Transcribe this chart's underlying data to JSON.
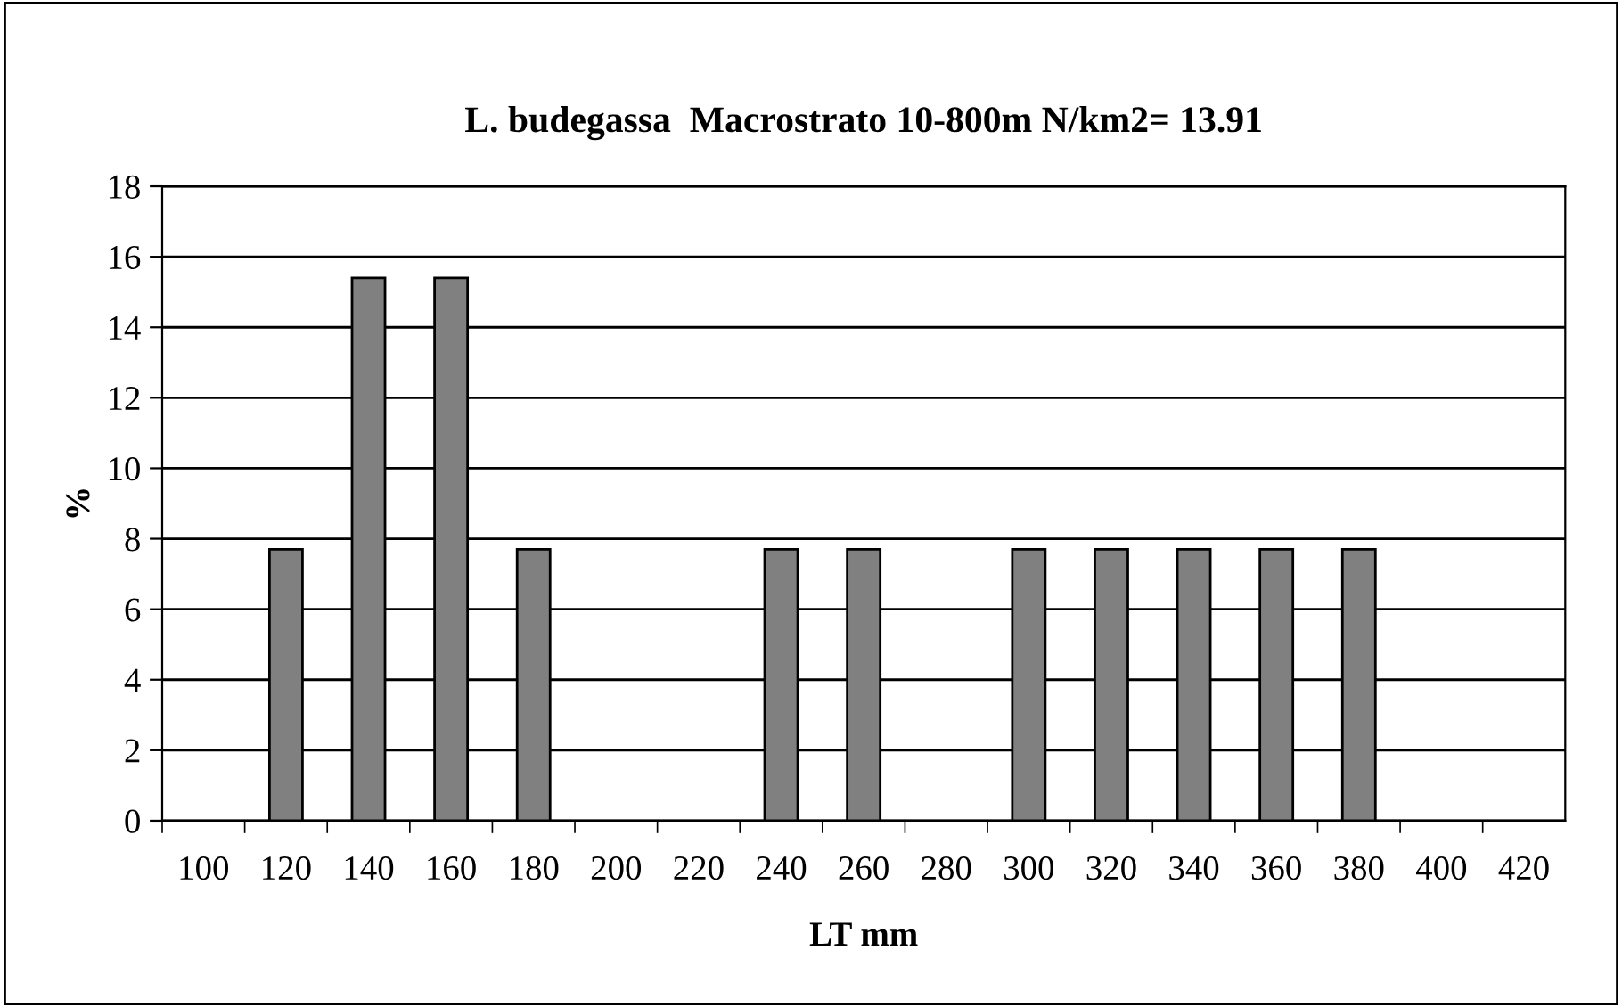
{
  "chart_data": {
    "type": "bar",
    "title": "L. budegassa  Macrostrato 10-800m N/km2= 13.91",
    "xlabel": "LT mm",
    "ylabel": "%",
    "categories": [
      "100",
      "120",
      "140",
      "160",
      "180",
      "200",
      "220",
      "240",
      "260",
      "280",
      "300",
      "320",
      "340",
      "360",
      "380",
      "400",
      "420"
    ],
    "values": [
      null,
      7.7,
      15.4,
      15.4,
      7.7,
      null,
      null,
      7.7,
      7.7,
      null,
      7.7,
      7.7,
      7.7,
      7.7,
      7.7,
      null,
      null
    ],
    "color": "#808080",
    "ylim": [
      0,
      18
    ],
    "yticks": [
      0,
      2,
      4,
      6,
      8,
      10,
      12,
      14,
      16,
      18
    ],
    "grid": "y",
    "legend": false
  }
}
